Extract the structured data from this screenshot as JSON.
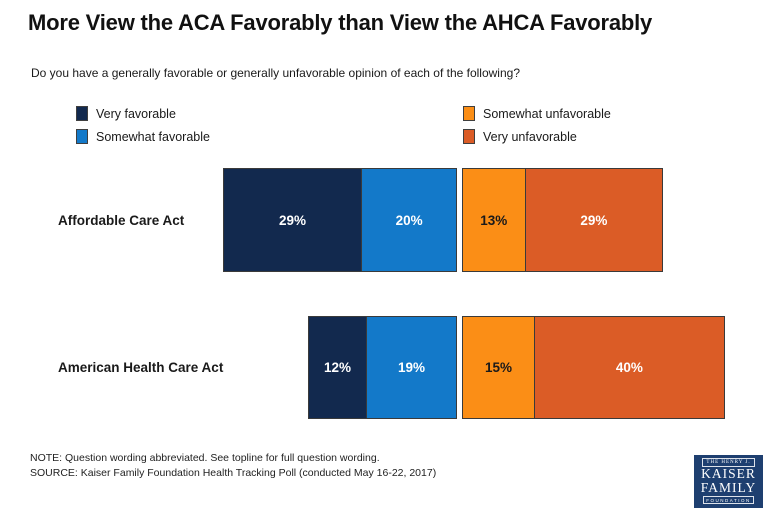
{
  "header": {
    "title": "More View the ACA Favorably than View the AHCA Favorably",
    "question": "Do you have a generally favorable or generally unfavorable opinion of each of the following?"
  },
  "legend": {
    "items": [
      {
        "label": "Very favorable",
        "color": "#12294E"
      },
      {
        "label": "Somewhat favorable",
        "color": "#1379C9"
      },
      {
        "label": "Somewhat unfavorable",
        "color": "#FB8E16"
      },
      {
        "label": "Very unfavorable",
        "color": "#DB5C26"
      }
    ]
  },
  "chart_data": {
    "type": "bar",
    "variant": "horizontal-diverging-stacked",
    "unit": "%",
    "categories": [
      "Affordable Care Act",
      "American Health Care Act"
    ],
    "series": [
      {
        "name": "Very favorable",
        "group": "favorable",
        "color": "#12294E",
        "label_color": "#ffffff",
        "values": [
          29,
          12
        ]
      },
      {
        "name": "Somewhat favorable",
        "group": "favorable",
        "color": "#1379C9",
        "label_color": "#ffffff",
        "values": [
          20,
          19
        ]
      },
      {
        "name": "Somewhat unfavorable",
        "group": "unfavorable",
        "color": "#FB8E16",
        "label_color": "#1a1a1a",
        "values": [
          13,
          15
        ]
      },
      {
        "name": "Very unfavorable",
        "group": "unfavorable",
        "color": "#DB5C26",
        "label_color": "#ffffff",
        "values": [
          29,
          40
        ]
      }
    ],
    "title": "More View the ACA Favorably than View the AHCA Favorably",
    "xlabel": "",
    "ylabel": "",
    "legend_position": "top-two-columns",
    "grid": false
  },
  "notes": {
    "note": "NOTE: Question wording abbreviated. See topline for full question wording.",
    "source": "SOURCE: Kaiser Family Foundation Health Tracking Poll (conducted May 16-22, 2017)"
  },
  "logo": {
    "top": "THE HENRY J.",
    "line1": "KAISER",
    "line2": "FAMILY",
    "bottom": "FOUNDATION"
  }
}
